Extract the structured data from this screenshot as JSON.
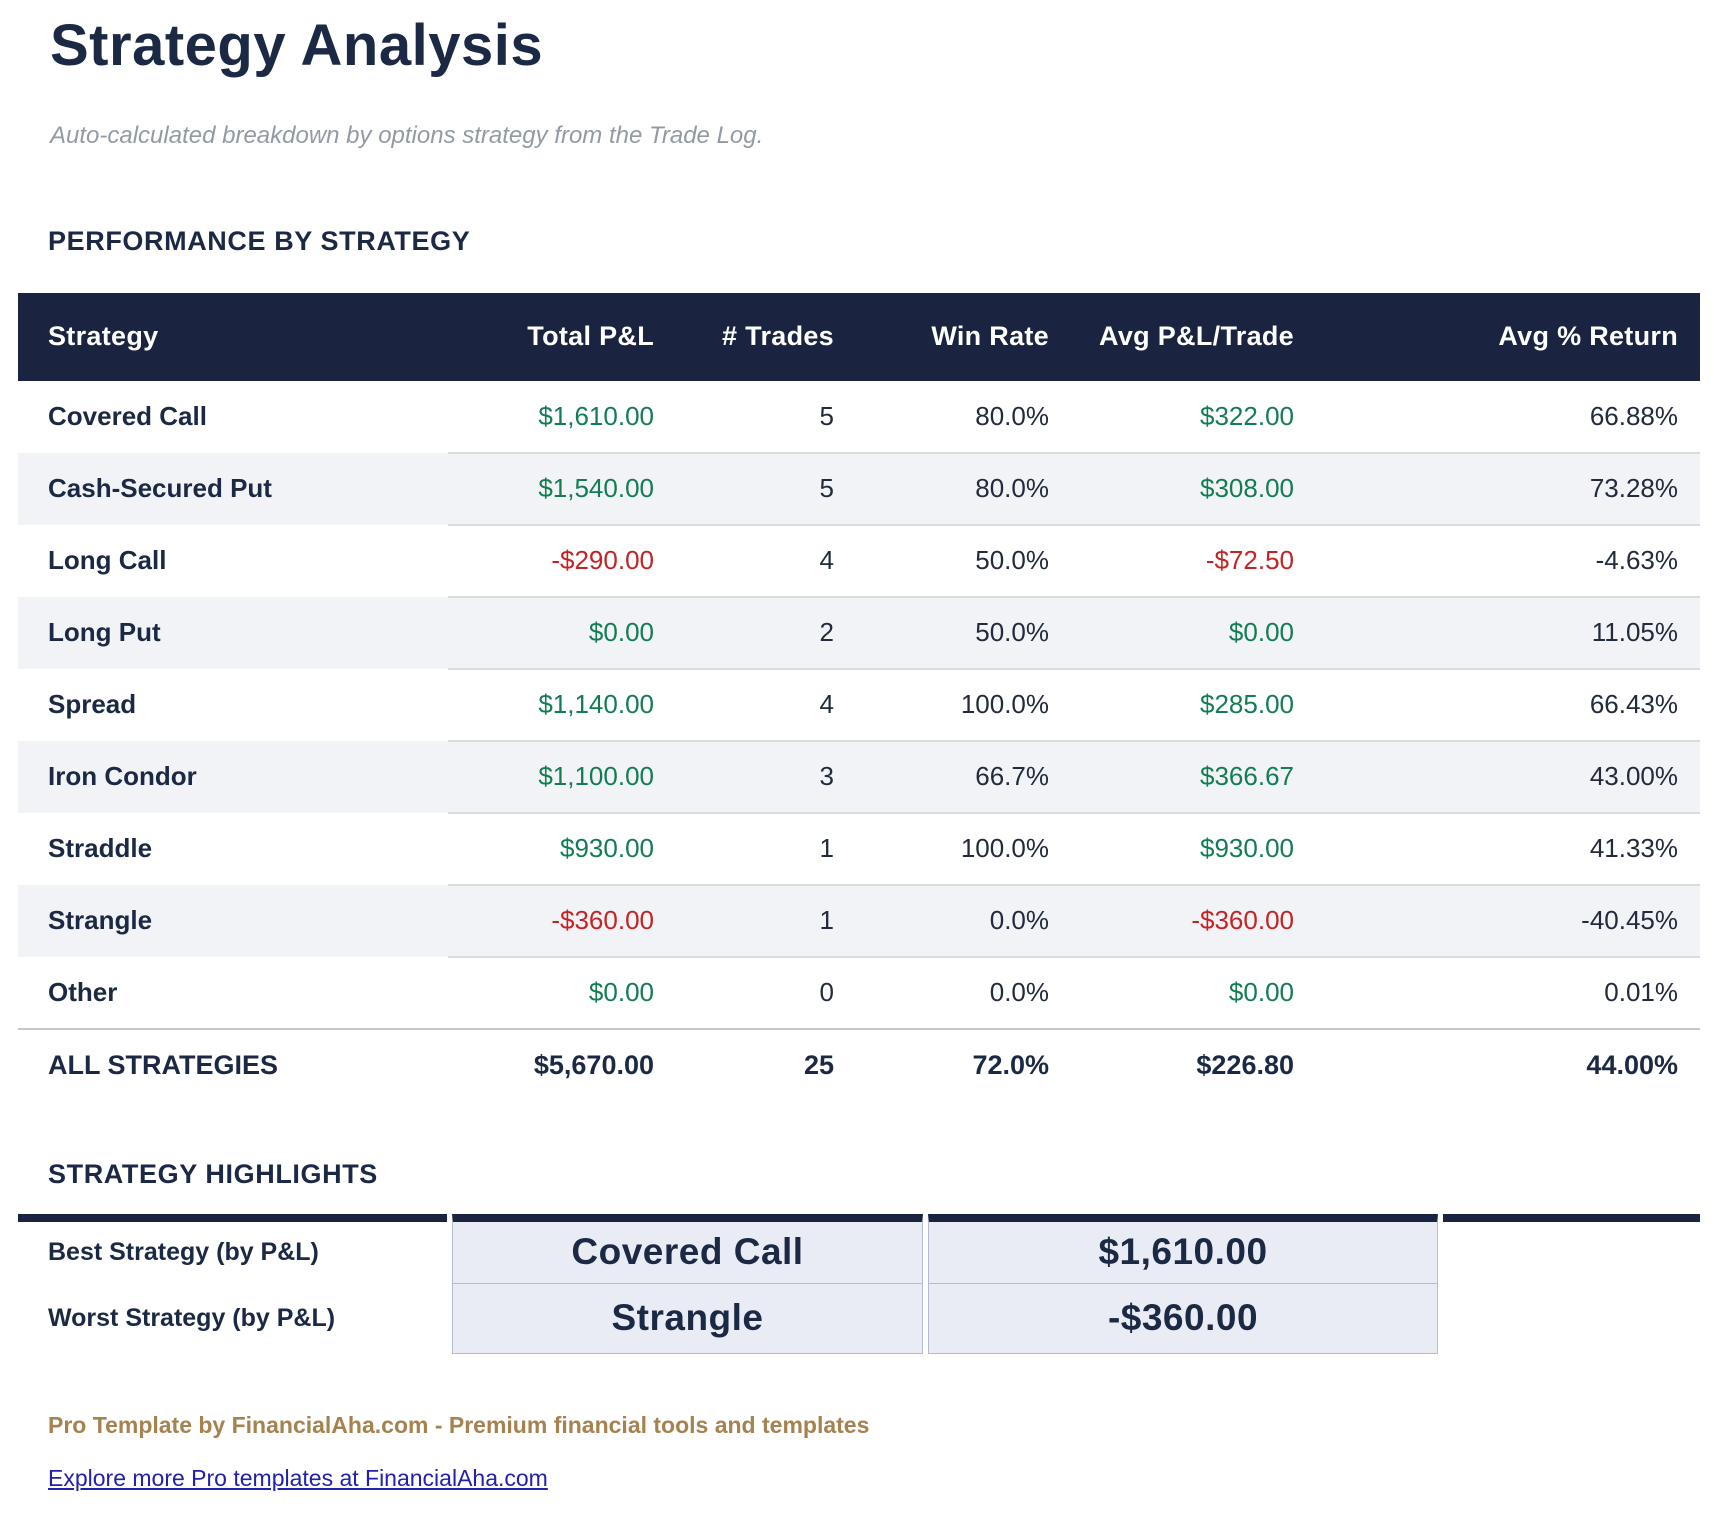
{
  "page": {
    "title": "Strategy Analysis",
    "subtitle": "Auto-calculated breakdown by options strategy from the Trade Log."
  },
  "performance": {
    "heading": "PERFORMANCE BY STRATEGY",
    "columns": [
      "Strategy",
      "Total P&L",
      "# Trades",
      "Win Rate",
      "Avg P&L/Trade",
      "Avg % Return"
    ],
    "rows": [
      {
        "strategy": "Covered Call",
        "total_pl": "$1,610.00",
        "pl_sign": "pos",
        "trades": "5",
        "win_rate": "80.0%",
        "avg_pl": "$322.00",
        "avg_sign": "pos",
        "avg_return": "66.88%"
      },
      {
        "strategy": "Cash-Secured Put",
        "total_pl": "$1,540.00",
        "pl_sign": "pos",
        "trades": "5",
        "win_rate": "80.0%",
        "avg_pl": "$308.00",
        "avg_sign": "pos",
        "avg_return": "73.28%"
      },
      {
        "strategy": "Long Call",
        "total_pl": "-$290.00",
        "pl_sign": "neg",
        "trades": "4",
        "win_rate": "50.0%",
        "avg_pl": "-$72.50",
        "avg_sign": "neg",
        "avg_return": "-4.63%"
      },
      {
        "strategy": "Long Put",
        "total_pl": "$0.00",
        "pl_sign": "pos",
        "trades": "2",
        "win_rate": "50.0%",
        "avg_pl": "$0.00",
        "avg_sign": "pos",
        "avg_return": "11.05%"
      },
      {
        "strategy": "Spread",
        "total_pl": "$1,140.00",
        "pl_sign": "pos",
        "trades": "4",
        "win_rate": "100.0%",
        "avg_pl": "$285.00",
        "avg_sign": "pos",
        "avg_return": "66.43%"
      },
      {
        "strategy": "Iron Condor",
        "total_pl": "$1,100.00",
        "pl_sign": "pos",
        "trades": "3",
        "win_rate": "66.7%",
        "avg_pl": "$366.67",
        "avg_sign": "pos",
        "avg_return": "43.00%"
      },
      {
        "strategy": "Straddle",
        "total_pl": "$930.00",
        "pl_sign": "pos",
        "trades": "1",
        "win_rate": "100.0%",
        "avg_pl": "$930.00",
        "avg_sign": "pos",
        "avg_return": "41.33%"
      },
      {
        "strategy": "Strangle",
        "total_pl": "-$360.00",
        "pl_sign": "neg",
        "trades": "1",
        "win_rate": "0.0%",
        "avg_pl": "-$360.00",
        "avg_sign": "neg",
        "avg_return": "-40.45%"
      },
      {
        "strategy": "Other",
        "total_pl": "$0.00",
        "pl_sign": "pos",
        "trades": "0",
        "win_rate": "0.0%",
        "avg_pl": "$0.00",
        "avg_sign": "pos",
        "avg_return": "0.01%"
      }
    ],
    "totals": {
      "strategy": "ALL STRATEGIES",
      "total_pl": "$5,670.00",
      "trades": "25",
      "win_rate": "72.0%",
      "avg_pl": "$226.80",
      "avg_return": "44.00%"
    }
  },
  "highlights": {
    "heading": "STRATEGY HIGHLIGHTS",
    "rows": [
      {
        "label": "Best Strategy (by P&L)",
        "strategy": "Covered Call",
        "value": "$1,610.00"
      },
      {
        "label": "Worst Strategy (by P&L)",
        "strategy": "Strangle",
        "value": "-$360.00"
      }
    ]
  },
  "footer": {
    "branding": "Pro Template by FinancialAha.com - Premium financial tools and templates",
    "link": "Explore more Pro templates at FinancialAha.com"
  },
  "colors": {
    "navy": "#1a2440",
    "navy_text": "#1c2944",
    "green": "#127d53",
    "red": "#c52323",
    "alt_row": "#f2f3f6",
    "divider": "#dadcdf",
    "hl_bg": "#e9ecf5",
    "hl_border": "#b6bccd",
    "gold": "#a5824f",
    "link": "#2121ad",
    "subtitle": "#929aa5"
  }
}
